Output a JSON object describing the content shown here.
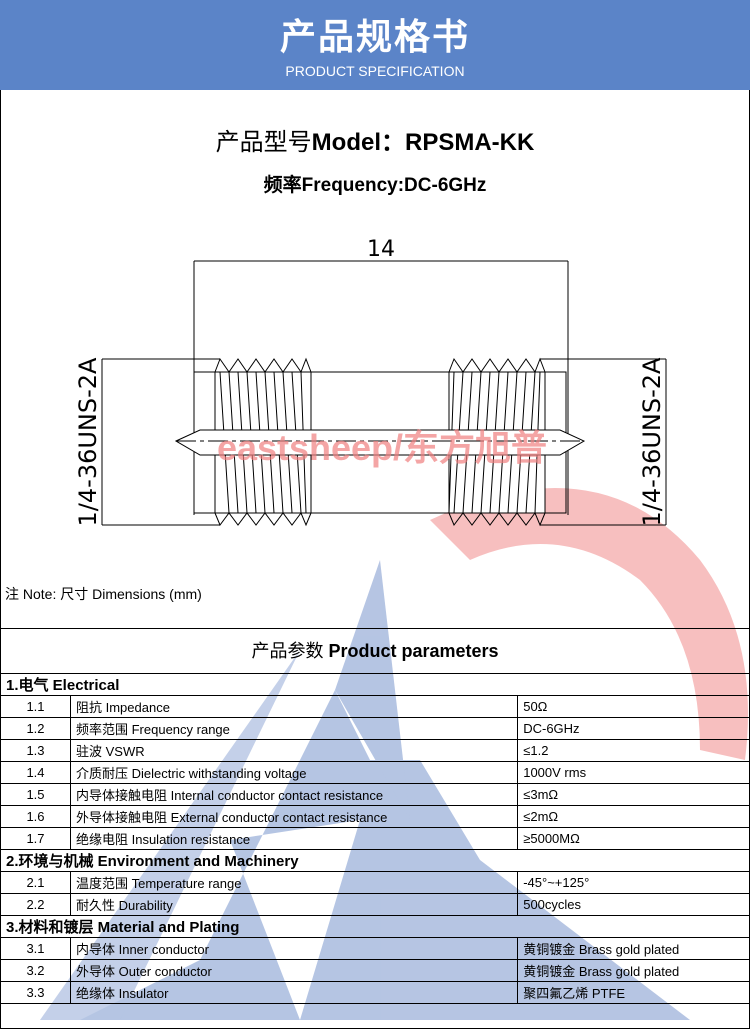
{
  "header": {
    "title_cn": "产品规格书",
    "title_en": "PRODUCT SPECIFICATION",
    "color": "#5b84c8"
  },
  "model": {
    "label": "产品型号",
    "label_en": "Model：",
    "value": "RPSMA-KK"
  },
  "frequency": {
    "label": "频率",
    "label_en": "Frequency:",
    "value": "DC-6GHz"
  },
  "drawing": {
    "dimension": "14",
    "thread_left": "1/4-36UNS-2A",
    "thread_right": "1/4-36UNS-2A",
    "watermark_text": "eastsheep/东方旭普"
  },
  "note": "注 Note:  尺寸 Dimensions (mm)",
  "params": {
    "title_cn": "产品参数",
    "title_en": " Product parameters",
    "sections": [
      {
        "title": "1.电气 Electrical",
        "rows": [
          {
            "num": "1.1",
            "name": "阻抗 Impedance",
            "value": "50Ω"
          },
          {
            "num": "1.2",
            "name": "频率范围 Frequency range",
            "value": "DC-6GHz"
          },
          {
            "num": "1.3",
            "name": "驻波 VSWR",
            "value": "≤1.2"
          },
          {
            "num": "1.4",
            "name": "介质耐压 Dielectric withstanding voltage",
            "value": "1000V rms"
          },
          {
            "num": "1.5",
            "name": "内导体接触电阻 Internal conductor contact resistance",
            "value": "≤3mΩ"
          },
          {
            "num": "1.6",
            "name": "外导体接触电阻 External conductor contact resistance",
            "value": "≤2mΩ"
          },
          {
            "num": "1.7",
            "name": "绝缘电阻  Insulation resistance",
            "value": "≥5000MΩ"
          }
        ]
      },
      {
        "title": "2.环境与机械 Environment and Machinery",
        "rows": [
          {
            "num": "2.1",
            "name": "温度范围 Temperature range",
            "value": "-45°~+125°"
          },
          {
            "num": "2.2",
            "name": "耐久性 Durability",
            "value": "500cycles"
          }
        ]
      },
      {
        "title": "3.材料和镀层 Material and Plating",
        "rows": [
          {
            "num": "3.1",
            "name": "内导体 Inner conductor",
            "value": "黄铜镀金 Brass gold plated"
          },
          {
            "num": "3.2",
            "name": "外导体 Outer conductor",
            "value": "黄铜镀金 Brass gold plated"
          },
          {
            "num": "3.3",
            "name": "绝缘体 Insulator",
            "value": "聚四氟乙烯 PTFE"
          }
        ]
      }
    ]
  },
  "watermark": {
    "brand": "eastsheep",
    "blue": "#6d8cc8",
    "red": "#f08080"
  }
}
